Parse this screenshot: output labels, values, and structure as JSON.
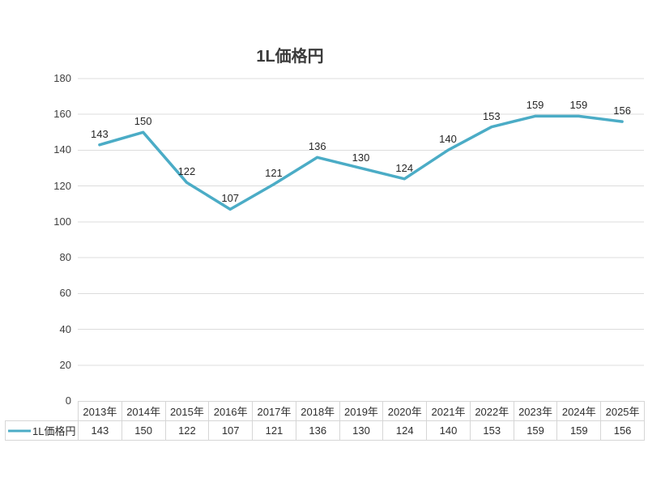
{
  "chart_data": {
    "type": "line",
    "title": "1L価格円",
    "categories": [
      "2013年",
      "2014年",
      "2015年",
      "2016年",
      "2017年",
      "2018年",
      "2019年",
      "2020年",
      "2021年",
      "2022年",
      "2023年",
      "2024年",
      "2025年"
    ],
    "series": [
      {
        "name": "1L価格円",
        "values": [
          143,
          150,
          122,
          107,
          121,
          136,
          130,
          124,
          140,
          153,
          159,
          159,
          156
        ]
      }
    ],
    "y_axis_tick_labels": [
      "0",
      "20",
      "40",
      "60",
      "80",
      "100",
      "120",
      "140",
      "160",
      "180"
    ],
    "ylim": [
      0,
      180
    ],
    "ytick_step": 20,
    "grid": true,
    "data_labels_position": "above",
    "legend_position": "data-table-left",
    "line_color": "#4BACC6",
    "gridline_color": "#DCDCDC",
    "table_border_color": "#D6D6D6",
    "text_color": "#3F3F3F"
  }
}
